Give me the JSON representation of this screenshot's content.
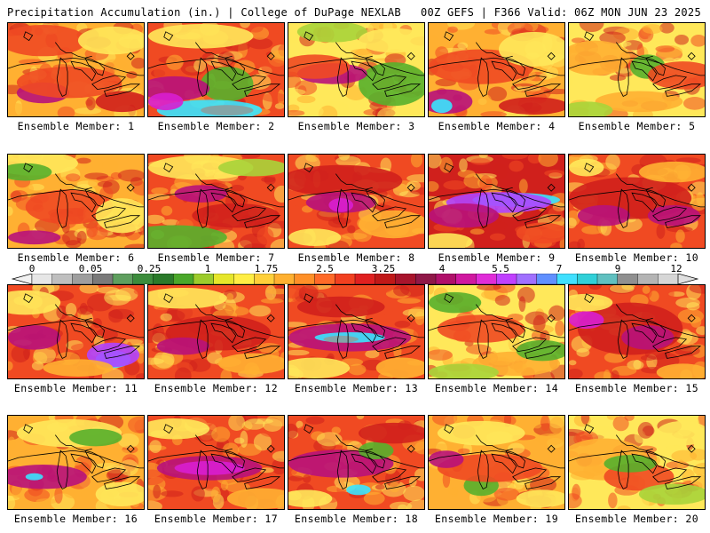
{
  "header": {
    "left": "Precipitation Accumulation (in.) | College of DuPage NEXLAB",
    "right": "00Z GEFS | F366 Valid: 06Z MON JUN 23 2025"
  },
  "colorbar": {
    "labels": [
      "0",
      "0.05",
      "0.25",
      "1",
      "1.75",
      "2.5",
      "3.25",
      "4",
      "5.5",
      "7",
      "9",
      "12"
    ],
    "colors": [
      "#e6e6e6",
      "#bfbfbf",
      "#9e9e9e",
      "#7a7a7a",
      "#5f9f5f",
      "#3c8c3c",
      "#2a7a2a",
      "#4aa82a",
      "#9ccc2c",
      "#e6e62a",
      "#ffee44",
      "#ffd03a",
      "#ffb030",
      "#ff9028",
      "#ff6a28",
      "#f24020",
      "#e02020",
      "#c01818",
      "#a8142c",
      "#901848",
      "#b0106a",
      "#d018a0",
      "#e02cd8",
      "#c040ff",
      "#a070ff",
      "#6090ff",
      "#40e0ff",
      "#30d0d8",
      "#60c0c0",
      "#909090",
      "#b4b4b4",
      "#d6d6d6"
    ]
  },
  "members": [
    {
      "label": "Ensemble Member: 1"
    },
    {
      "label": "Ensemble Member: 2"
    },
    {
      "label": "Ensemble Member: 3"
    },
    {
      "label": "Ensemble Member: 4"
    },
    {
      "label": "Ensemble Member: 5"
    },
    {
      "label": "Ensemble Member: 6"
    },
    {
      "label": "Ensemble Member: 7"
    },
    {
      "label": "Ensemble Member: 8"
    },
    {
      "label": "Ensemble Member: 9"
    },
    {
      "label": "Ensemble Member: 10"
    },
    {
      "label": "Ensemble Member: 11"
    },
    {
      "label": "Ensemble Member: 12"
    },
    {
      "label": "Ensemble Member: 13"
    },
    {
      "label": "Ensemble Member: 14"
    },
    {
      "label": "Ensemble Member: 15"
    },
    {
      "label": "Ensemble Member: 16"
    },
    {
      "label": "Ensemble Member: 17"
    },
    {
      "label": "Ensemble Member: 18"
    },
    {
      "label": "Ensemble Member: 19"
    },
    {
      "label": "Ensemble Member: 20"
    }
  ]
}
